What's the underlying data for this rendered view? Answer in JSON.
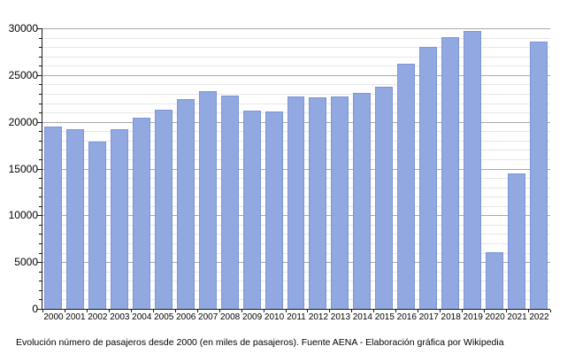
{
  "figure": {
    "caption": "Evolución número de pasajeros desde 2000 (en miles de pasajeros). Fuente AENA - Elaboración gráfica por Wikipedia"
  },
  "chart_data": {
    "type": "bar",
    "title": "",
    "xlabel": "",
    "ylabel": "",
    "categories": [
      "2000",
      "2001",
      "2002",
      "2003",
      "2004",
      "2005",
      "2006",
      "2007",
      "2008",
      "2009",
      "2010",
      "2011",
      "2012",
      "2013",
      "2014",
      "2015",
      "2016",
      "2017",
      "2018",
      "2019",
      "2020",
      "2021",
      "2022"
    ],
    "values": [
      19450,
      19200,
      17850,
      19200,
      20450,
      21250,
      22400,
      23250,
      22850,
      21200,
      21150,
      22750,
      22650,
      22750,
      23100,
      23800,
      26250,
      28000,
      29100,
      29750,
      6100,
      14500,
      28600
    ],
    "ylim": [
      0,
      30000
    ],
    "ytick_major_interval": 5000,
    "ytick_minor_interval": 1000,
    "ytick_labels": [
      "0",
      "5000",
      "10000",
      "15000",
      "20000",
      "25000",
      "30000"
    ],
    "grid": true,
    "legend_position": "none",
    "colors": {
      "bar_fill": "#92a8e1",
      "bar_border": "#7e95d6",
      "major_grid": "#a9a9a9",
      "minor_grid": "#e7e7e7",
      "axis": "#1a1a1a",
      "text": "#000000",
      "background": "#ffffff"
    }
  }
}
